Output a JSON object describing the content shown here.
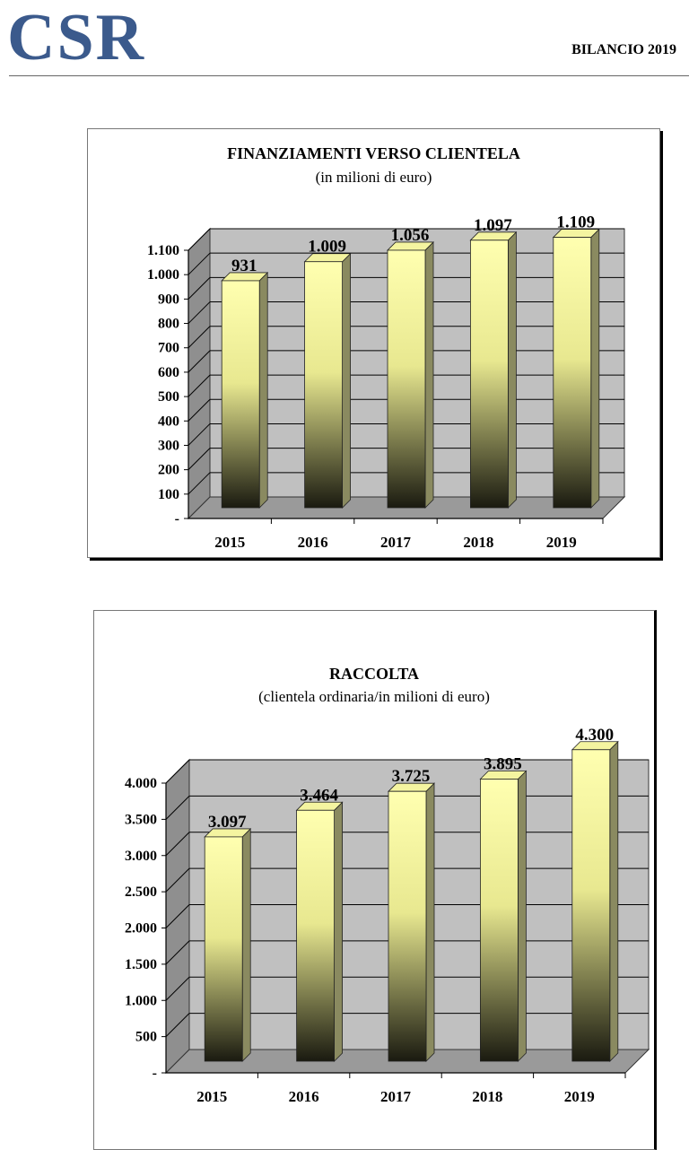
{
  "header": {
    "logo": "CSR",
    "right_text": "BILANCIO 2019"
  },
  "charts": [
    {
      "title": "FINANZIAMENTI VERSO CLIENTELA",
      "subtitle": "(in milioni di euro)"
    },
    {
      "title": "RACCOLTA",
      "subtitle": "(clientela ordinaria/in milioni di euro)"
    }
  ],
  "colors": {
    "wall": "#c0c0c0",
    "bar_top": "#ffffb0",
    "bar_bottom": "#1a1a10",
    "bar_side": "#8a8a60",
    "gridline": "#000000",
    "logo": "#3b5a8c"
  },
  "chart_data": [
    {
      "type": "bar",
      "title": "FINANZIAMENTI VERSO CLIENTELA",
      "subtitle": "(in milioni di euro)",
      "categories": [
        "2015",
        "2016",
        "2017",
        "2018",
        "2019"
      ],
      "values": [
        931,
        1009,
        1056,
        1097,
        1109
      ],
      "data_labels": [
        "931",
        "1.009",
        "1.056",
        "1.097",
        "1.109"
      ],
      "ylim": [
        0,
        1100
      ],
      "yticks": [
        "-",
        "100",
        "200",
        "300",
        "400",
        "500",
        "600",
        "700",
        "800",
        "900",
        "1.000",
        "1.100"
      ],
      "grid": true
    },
    {
      "type": "bar",
      "title": "RACCOLTA",
      "subtitle": "(clientela ordinaria/in milioni di euro)",
      "categories": [
        "2015",
        "2016",
        "2017",
        "2018",
        "2019"
      ],
      "values": [
        3097,
        3464,
        3725,
        3895,
        4300
      ],
      "data_labels": [
        "3.097",
        "3.464",
        "3.725",
        "3.895",
        "4.300"
      ],
      "ylim": [
        0,
        4000
      ],
      "yticks": [
        "-",
        "500",
        "1.000",
        "1.500",
        "2.000",
        "2.500",
        "3.000",
        "3.500",
        "4.000"
      ],
      "grid": true
    }
  ]
}
